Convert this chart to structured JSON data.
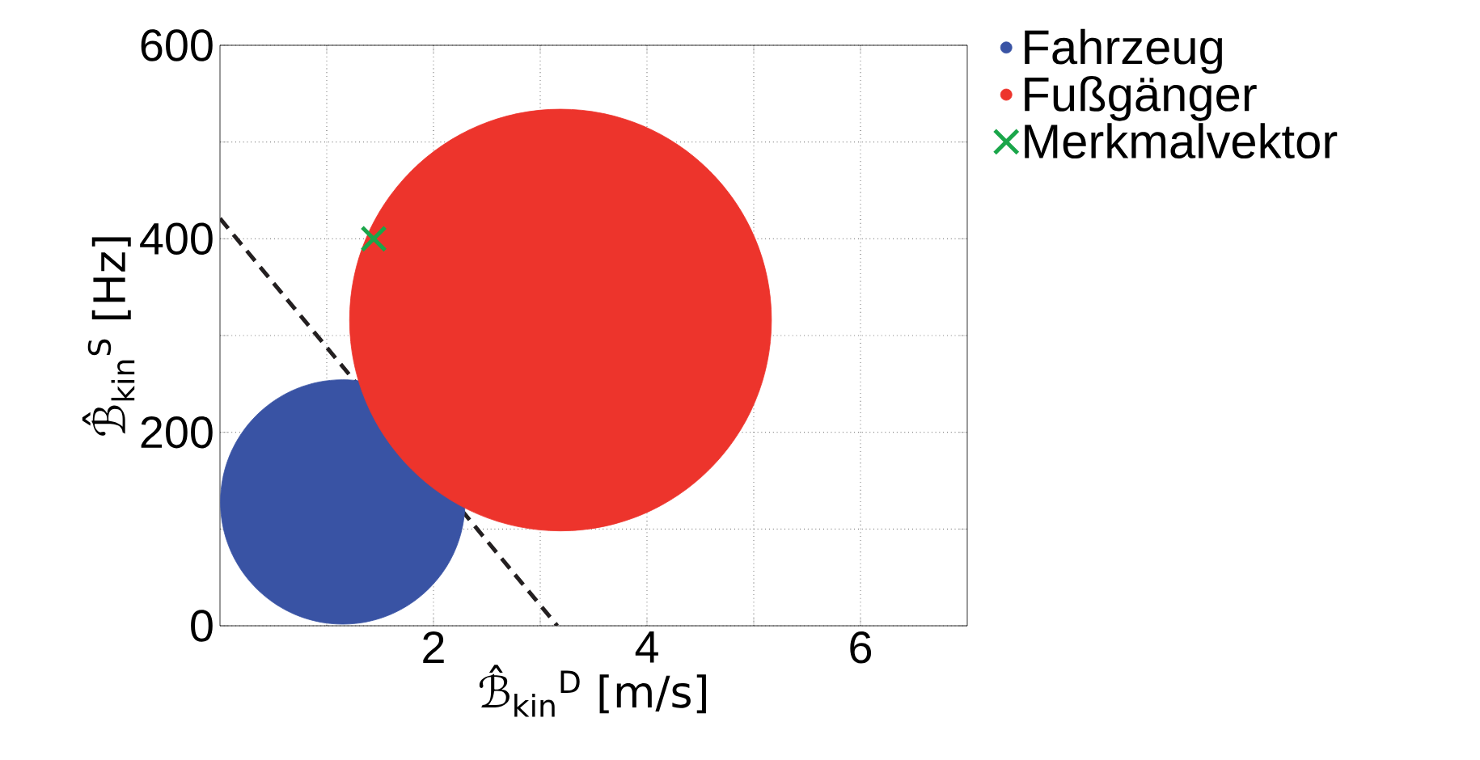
{
  "chart_data": {
    "type": "bubble",
    "xlabel": "ℬ̂$_{kin}$$^{D}$ [m/s]",
    "ylabel": "ℬ̂$_{kin}$$^{S}$ [Hz]",
    "xlim": [
      0,
      7
    ],
    "xticks": [
      {
        "value": 1,
        "label": null
      },
      2,
      {
        "value": 3,
        "label": null
      },
      4,
      {
        "value": 5,
        "label": null
      },
      6
    ],
    "ylim": [
      0,
      600
    ],
    "yticks": [
      0,
      {
        "value": 100,
        "label": null
      },
      200,
      {
        "value": 300,
        "label": null
      },
      400,
      {
        "value": 500,
        "label": null
      },
      600
    ],
    "grid": true,
    "legend": "right",
    "series": [
      {
        "name": "Fahrzeug",
        "color": "#3953a4",
        "x": [
          1.15
        ],
        "values": [
          128
        ],
        "sizes": [
          0.336
        ]
      },
      {
        "name": "Fußgänger",
        "color": "#ed342c",
        "x": [
          3.19
        ],
        "values": [
          316
        ],
        "sizes": [
          1
        ]
      },
      {
        "name": "Merkmalvektor",
        "type": "scatter",
        "marker": "cross",
        "color": "#1aa64a",
        "x": [
          1.44
        ],
        "values": [
          400
        ]
      },
      {
        "type": "line",
        "line_style": "dashed",
        "color": "#231f20",
        "x": [
          0,
          3.16
        ],
        "values": [
          421,
          0
        ]
      }
    ]
  }
}
